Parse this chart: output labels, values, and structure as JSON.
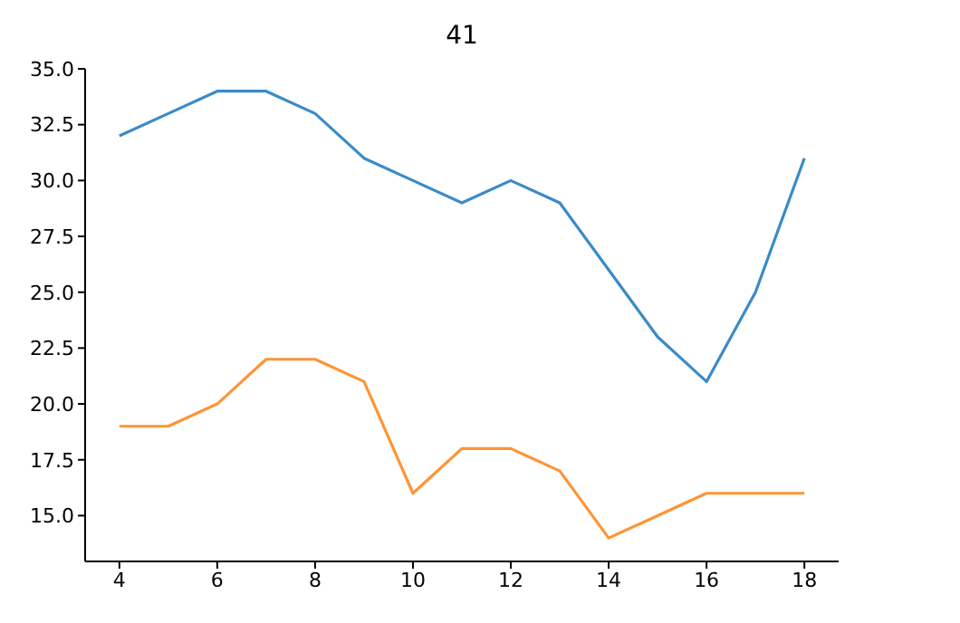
{
  "chart_data": {
    "type": "line",
    "title": "41",
    "x": [
      4,
      5,
      6,
      7,
      8,
      9,
      10,
      11,
      12,
      13,
      14,
      15,
      16,
      17,
      18
    ],
    "series": [
      {
        "color": "#3b8bc6",
        "values": [
          32,
          33,
          34,
          34,
          33,
          31,
          30,
          29,
          30,
          29,
          26,
          23,
          21,
          25,
          31
        ]
      },
      {
        "color": "#fd9535",
        "values": [
          19,
          19,
          20,
          22,
          22,
          21,
          16,
          18,
          18,
          17,
          14,
          15,
          16,
          16,
          16
        ]
      }
    ],
    "xlim": [
      3.3,
      18.7
    ],
    "xticks": [
      4,
      6,
      8,
      10,
      12,
      14,
      16,
      18
    ],
    "ylim": [
      12.95,
      35
    ],
    "yticks": [
      {
        "value": 15,
        "label": "15.0"
      },
      {
        "value": 17.5,
        "label": "17.5"
      },
      {
        "value": 20,
        "label": "20.0"
      },
      {
        "value": 22.5,
        "label": "22.5"
      },
      {
        "value": 25,
        "label": "25.0"
      },
      {
        "value": 27.5,
        "label": "27.5"
      },
      {
        "value": 30,
        "label": "30.0"
      },
      {
        "value": 32.5,
        "label": "32.5"
      },
      {
        "value": 35,
        "label": "35.0"
      }
    ],
    "grid": false,
    "legend": false,
    "marker": "none",
    "line_style": "solid"
  }
}
